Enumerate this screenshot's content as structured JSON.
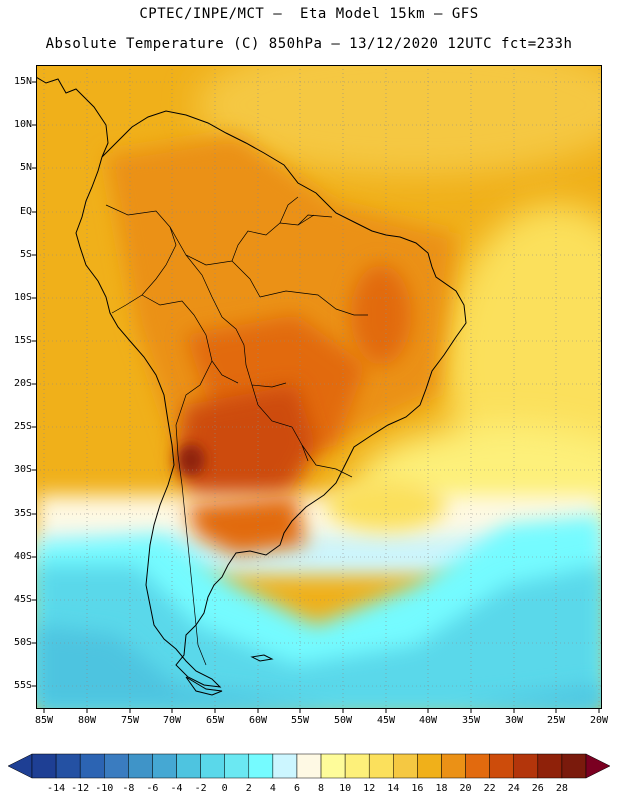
{
  "header": {
    "title_line1": "CPTEC/INPE/MCT –  Eta Model 15km – GFS",
    "title_line2": "Absolute Temperature (C) 850hPa – 13/12/2020 12UTC fct=233h"
  },
  "axes": {
    "y_ticks": [
      "15N",
      "10N",
      "5N",
      "EQ",
      "5S",
      "10S",
      "15S",
      "20S",
      "25S",
      "30S",
      "35S",
      "40S",
      "45S",
      "50S",
      "55S"
    ],
    "x_ticks": [
      "85W",
      "80W",
      "75W",
      "70W",
      "65W",
      "60W",
      "55W",
      "50W",
      "45W",
      "40W",
      "35W",
      "30W",
      "25W",
      "20W"
    ]
  },
  "colorbar": {
    "labels": [
      "-14",
      "-12",
      "-10",
      "-8",
      "-6",
      "-4",
      "-2",
      "0",
      "2",
      "4",
      "6",
      "8",
      "10",
      "12",
      "14",
      "16",
      "18",
      "20",
      "22",
      "24",
      "26",
      "28"
    ],
    "colors": [
      "#1e3f94",
      "#2451a3",
      "#2c64b3",
      "#3a7cc0",
      "#3f94c8",
      "#45a8d3",
      "#4ec4e0",
      "#5ad8ea",
      "#6be8f2",
      "#75fbff",
      "#ccf6ff",
      "#fef9e4",
      "#fefc9a",
      "#fdf07a",
      "#fbe05c",
      "#f5c842",
      "#f0b01a",
      "#eb9116",
      "#e26a0e",
      "#cd4c0b",
      "#b3350b",
      "#8f2109",
      "#7a1a0c"
    ],
    "low_color": "#1e3f94",
    "high_color": "#7a0021"
  }
}
